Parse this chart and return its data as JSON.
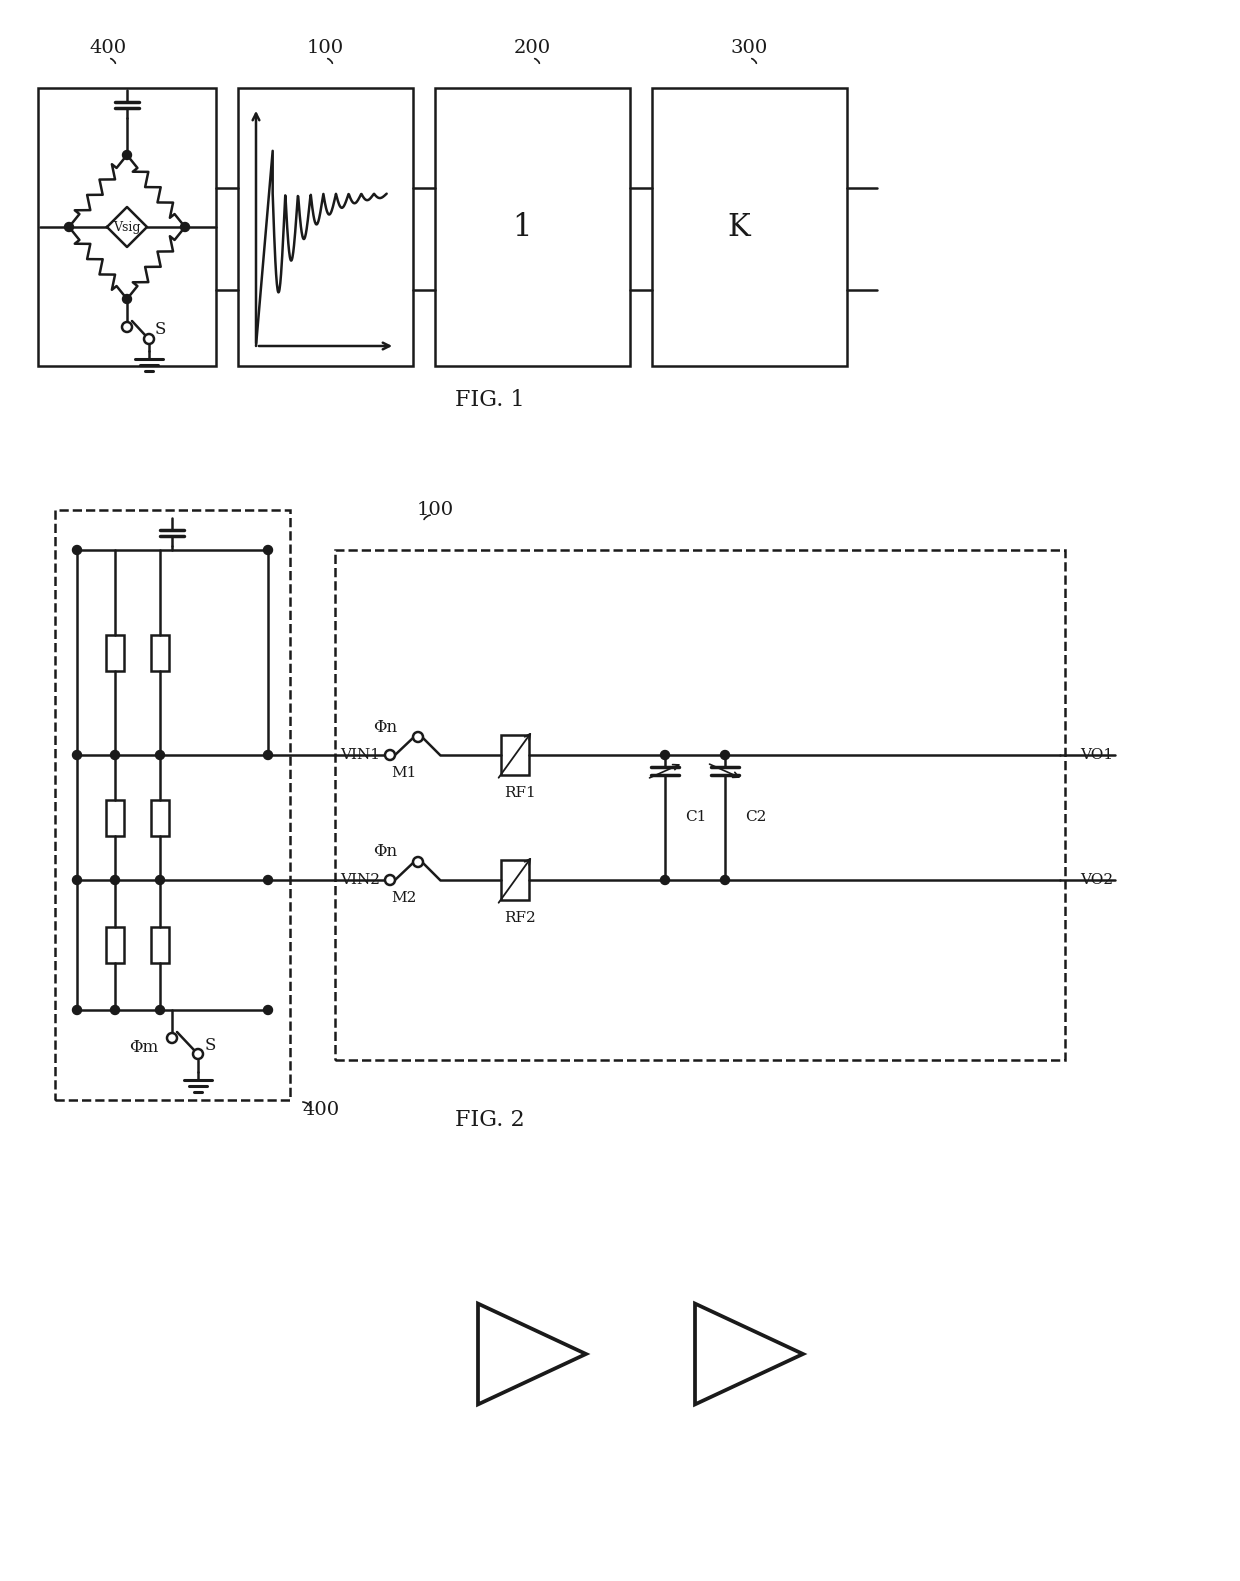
{
  "fig_width": 12.4,
  "fig_height": 15.81,
  "bg_color": "#ffffff",
  "line_color": "#1a1a1a",
  "line_width": 1.8,
  "fig1_label": "FIG. 1",
  "fig2_label": "FIG. 2",
  "label_400_f1": "400",
  "label_100_f1": "100",
  "label_200_f1": "200",
  "label_300_f1": "300",
  "label_100_f2": "100",
  "label_400_f2": "400",
  "label_vsig": "Vsig",
  "label_s_fig1": "S",
  "label_1": "1",
  "label_k": "K",
  "label_vin1": "VIN1",
  "label_vin2": "VIN2",
  "label_vo1": "VO1",
  "label_vo2": "VO2",
  "label_m1": "M1",
  "label_m2": "M2",
  "label_rf1": "RF1",
  "label_rf2": "RF2",
  "label_c1": "C1",
  "label_c2": "C2",
  "label_phin": "Φn",
  "label_phim": "Φm",
  "label_s_fig2": "S"
}
